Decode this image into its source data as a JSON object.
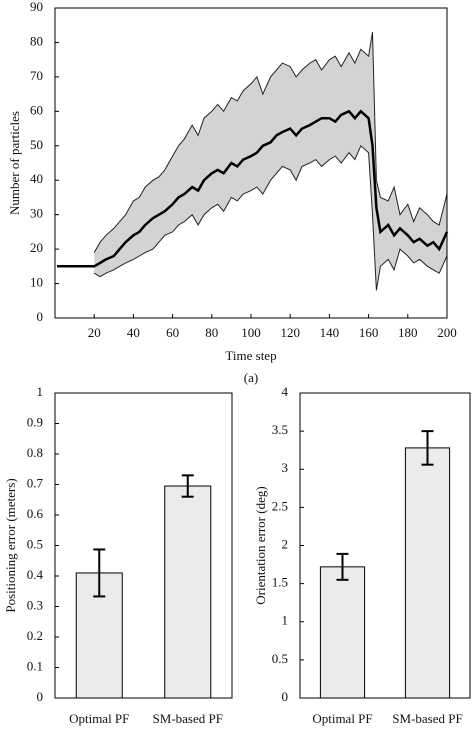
{
  "chart_data": [
    {
      "type": "line",
      "xlabel": "Time step",
      "ylabel": "Number of particles",
      "caption": "(a)",
      "x": [
        1,
        5,
        10,
        15,
        20,
        23,
        26,
        30,
        33,
        36,
        40,
        43,
        46,
        50,
        53,
        56,
        60,
        63,
        66,
        70,
        73,
        76,
        80,
        83,
        86,
        90,
        93,
        96,
        100,
        103,
        106,
        110,
        113,
        116,
        120,
        123,
        126,
        130,
        133,
        136,
        140,
        143,
        146,
        150,
        153,
        156,
        160,
        162,
        164,
        166,
        170,
        173,
        176,
        180,
        183,
        186,
        190,
        193,
        196,
        200
      ],
      "series": [
        {
          "color": "#000000",
          "values": [
            15,
            15,
            15,
            15,
            15,
            16,
            17,
            18,
            20,
            22,
            24,
            25,
            27,
            29,
            30,
            31,
            33,
            35,
            36,
            38,
            37,
            40,
            42,
            43,
            42,
            45,
            44,
            46,
            47,
            48,
            50,
            51,
            53,
            54,
            55,
            53,
            55,
            56,
            57,
            58,
            58,
            57,
            59,
            60,
            58,
            60,
            58,
            50,
            32,
            25,
            27,
            24,
            26,
            24,
            22,
            23,
            21,
            22,
            20,
            25
          ]
        }
      ],
      "band": {
        "color": "#d3d3d3",
        "upper": [
          null,
          null,
          null,
          null,
          19,
          22,
          24,
          26,
          28,
          30,
          34,
          35,
          38,
          40,
          41,
          43,
          47,
          50,
          52,
          56,
          53,
          58,
          60,
          62,
          60,
          64,
          63,
          66,
          68,
          70,
          65,
          70,
          72,
          74,
          73,
          70,
          72,
          74,
          75,
          72,
          75,
          76,
          73,
          77,
          74,
          78,
          76,
          83,
          40,
          35,
          34,
          38,
          30,
          33,
          28,
          32,
          30,
          28,
          27,
          36
        ],
        "lower": [
          null,
          null,
          null,
          null,
          13,
          12,
          13,
          14,
          15,
          16,
          17,
          18,
          19,
          20,
          22,
          24,
          25,
          27,
          28,
          30,
          27,
          30,
          32,
          33,
          31,
          35,
          34,
          36,
          37,
          38,
          36,
          40,
          42,
          44,
          43,
          40,
          44,
          45,
          46,
          44,
          46,
          47,
          45,
          48,
          46,
          50,
          48,
          30,
          8,
          15,
          17,
          14,
          20,
          18,
          16,
          17,
          15,
          14,
          13,
          18
        ]
      },
      "xlim": [
        0,
        200
      ],
      "xticks": [
        20,
        40,
        60,
        80,
        100,
        120,
        140,
        160,
        180,
        200
      ],
      "ylim": [
        0,
        90
      ],
      "yticks": [
        0,
        10,
        20,
        30,
        40,
        50,
        60,
        70,
        80,
        90
      ]
    },
    {
      "type": "bar",
      "ylabel": "Positioning error (meters)",
      "color": "#ebebeb",
      "categories": [
        "Optimal PF",
        "SM-based PF"
      ],
      "values": [
        0.41,
        0.695
      ],
      "errors": [
        0.077,
        0.035
      ],
      "ylim": [
        0,
        1
      ],
      "yticks": [
        0,
        0.1,
        0.2,
        0.3,
        0.4,
        0.5,
        0.6,
        0.7,
        0.8,
        0.9,
        1
      ]
    },
    {
      "type": "bar",
      "ylabel": "Orientation error (deg)",
      "color": "#ebebeb",
      "categories": [
        "Optimal PF",
        "SM-based PF"
      ],
      "values": [
        1.72,
        3.28
      ],
      "errors": [
        0.17,
        0.22
      ],
      "ylim": [
        0,
        4
      ],
      "yticks": [
        0,
        0.5,
        1,
        1.5,
        2,
        2.5,
        3,
        3.5,
        4
      ]
    }
  ]
}
